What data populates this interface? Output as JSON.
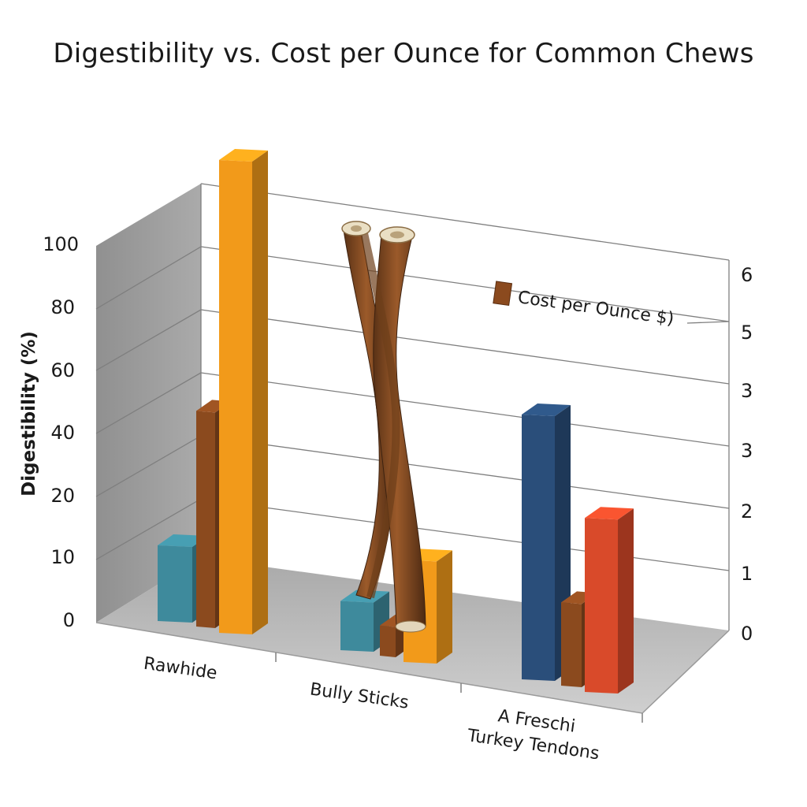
{
  "chart_data": {
    "type": "bar",
    "title": "Digestibility vs. Cost per Ounce for Common Chews",
    "ylabel": "Digestibility (%)",
    "ylabel_right": "",
    "left_ticks": [
      "0",
      "10",
      "20",
      "40",
      "60",
      "80",
      "100"
    ],
    "right_ticks": [
      "0",
      "1",
      "2",
      "3",
      "3",
      "5",
      "6"
    ],
    "categories": [
      "Rawhide",
      "Bully Sticks",
      "A Freschi\nTurkey Tendons"
    ],
    "legend": {
      "label": "Cost per Ounce $)",
      "color": "#8B4A1E",
      "position": "top-right"
    },
    "bars": [
      {
        "category": "Rawhide",
        "color": "#3E8A9C",
        "value": 20
      },
      {
        "category": "Rawhide",
        "color": "#8B4A1E",
        "value": 57
      },
      {
        "category": "Rawhide",
        "color": "#F29A1A",
        "value": 125
      },
      {
        "category": "Bully Sticks",
        "color": "#3E8A9C",
        "value": 13
      },
      {
        "category": "Bully Sticks",
        "color": "#8B4A1E",
        "value": 8
      },
      {
        "category": "Bully Sticks",
        "color": "#F29A1A",
        "value": 27
      },
      {
        "category": "A Freschi\nTurkey Tendons",
        "color": "#2A4E7A",
        "value": 70
      },
      {
        "category": "A Freschi\nTurkey Tendons",
        "color": "#8B4A1E",
        "value": 22
      },
      {
        "category": "A Freschi\nTurkey Tendons",
        "color": "#D94A2A",
        "value": 46
      }
    ],
    "grid": true
  },
  "colors": {
    "back_wall_grid": "#7a7a7a",
    "side_wall": "#8c8c8c",
    "floor": "#b9b9b9"
  },
  "decoration": {
    "icon": "bully-stick-illustration"
  }
}
